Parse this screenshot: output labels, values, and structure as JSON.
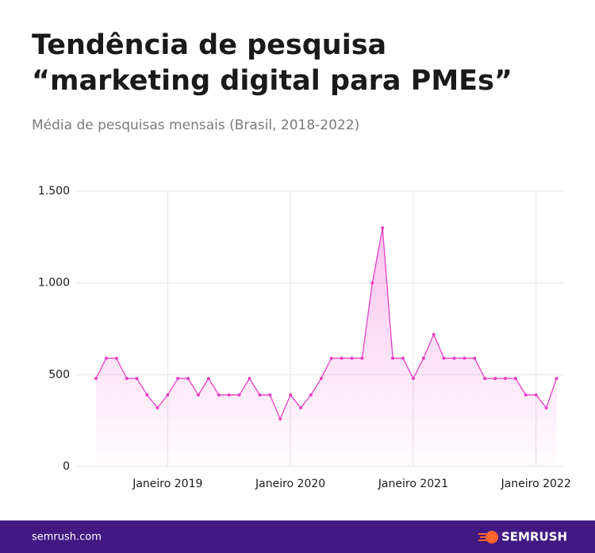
{
  "chart_data": {
    "type": "area-line",
    "title": [
      "Tendência de pesquisa",
      "“marketing digital para PMEs”"
    ],
    "subtitle": "Média de pesquisas mensais (Brasil, 2018-2022)",
    "categories": [
      null,
      null,
      null,
      null,
      null,
      null,
      null,
      "Janeiro 2019",
      null,
      null,
      null,
      null,
      null,
      null,
      null,
      null,
      null,
      null,
      null,
      "Janeiro 2020",
      null,
      null,
      null,
      null,
      null,
      null,
      null,
      null,
      null,
      null,
      null,
      "Janeiro 2021",
      null,
      null,
      null,
      null,
      null,
      null,
      null,
      null,
      null,
      null,
      null,
      "Janeiro 2022",
      null,
      null
    ],
    "series": [
      {
        "color": "#e63fc4",
        "values": [
          480,
          590,
          590,
          480,
          480,
          390,
          320,
          390,
          480,
          480,
          390,
          480,
          390,
          390,
          390,
          480,
          390,
          390,
          260,
          390,
          320,
          390,
          480,
          590,
          590,
          590,
          590,
          1000,
          1300,
          590,
          590,
          480,
          590,
          720,
          590,
          590,
          590,
          590,
          480,
          480,
          480,
          480,
          390,
          390,
          320,
          480
        ]
      }
    ],
    "ylim": [
      0,
      1500
    ],
    "yticks": [
      0,
      500,
      {
        "value": 1000,
        "label": "1.000"
      },
      {
        "value": 1500,
        "label": "1.500"
      }
    ],
    "grid": true,
    "footer": {
      "site": "semrush.com",
      "brand": "SEMRUSH"
    }
  }
}
